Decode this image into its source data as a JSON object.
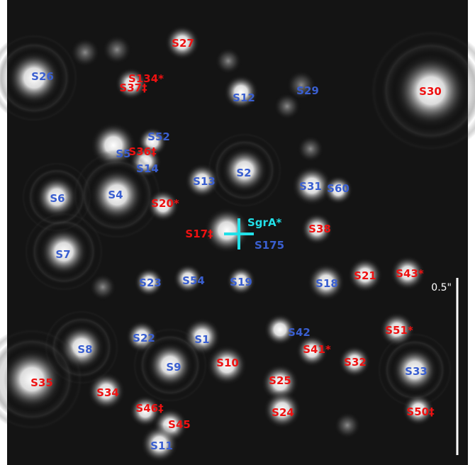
{
  "image": {
    "description_colors": {
      "blue_label": "#3a5fd0",
      "red_label": "#ee1111",
      "marker": "#22e0e8",
      "scale_bar": "#ffffff"
    },
    "labels": [
      {
        "text": "S27",
        "color": "red"
      },
      {
        "text": "S26",
        "color": "blue"
      },
      {
        "text": "S134*",
        "color": "red"
      },
      {
        "text": "S37‡",
        "color": "red"
      },
      {
        "text": "S12",
        "color": "blue"
      },
      {
        "text": "S29",
        "color": "blue"
      },
      {
        "text": "S30",
        "color": "red"
      },
      {
        "text": "S52",
        "color": "blue"
      },
      {
        "text": "S5",
        "color": "blue"
      },
      {
        "text": "S36‡",
        "color": "red"
      },
      {
        "text": "S14",
        "color": "blue"
      },
      {
        "text": "S13",
        "color": "blue"
      },
      {
        "text": "S2",
        "color": "blue"
      },
      {
        "text": "S31",
        "color": "blue"
      },
      {
        "text": "S60",
        "color": "blue"
      },
      {
        "text": "S6",
        "color": "blue"
      },
      {
        "text": "S4",
        "color": "blue"
      },
      {
        "text": "S20*",
        "color": "red"
      },
      {
        "text": "S17‡",
        "color": "red"
      },
      {
        "text": "S175",
        "color": "blue"
      },
      {
        "text": "S38",
        "color": "red"
      },
      {
        "text": "S7",
        "color": "blue"
      },
      {
        "text": "S23",
        "color": "blue"
      },
      {
        "text": "S54",
        "color": "blue"
      },
      {
        "text": "S19",
        "color": "blue"
      },
      {
        "text": "S18",
        "color": "blue"
      },
      {
        "text": "S21",
        "color": "red"
      },
      {
        "text": "S43*",
        "color": "red"
      },
      {
        "text": "S22",
        "color": "blue"
      },
      {
        "text": "S1",
        "color": "blue"
      },
      {
        "text": "S42",
        "color": "blue"
      },
      {
        "text": "S51*",
        "color": "red"
      },
      {
        "text": "S8",
        "color": "blue"
      },
      {
        "text": "S41*",
        "color": "red"
      },
      {
        "text": "S9",
        "color": "blue"
      },
      {
        "text": "S10",
        "color": "red"
      },
      {
        "text": "S32",
        "color": "red"
      },
      {
        "text": "S33",
        "color": "blue"
      },
      {
        "text": "S35",
        "color": "red"
      },
      {
        "text": "S34",
        "color": "red"
      },
      {
        "text": "S25",
        "color": "red"
      },
      {
        "text": "S46‡",
        "color": "red"
      },
      {
        "text": "S24",
        "color": "red"
      },
      {
        "text": "S50‡",
        "color": "red"
      },
      {
        "text": "S45",
        "color": "red"
      },
      {
        "text": "S11",
        "color": "blue"
      }
    ],
    "marker_label": "SgrA*",
    "scale_bar_label": "0.5\""
  }
}
